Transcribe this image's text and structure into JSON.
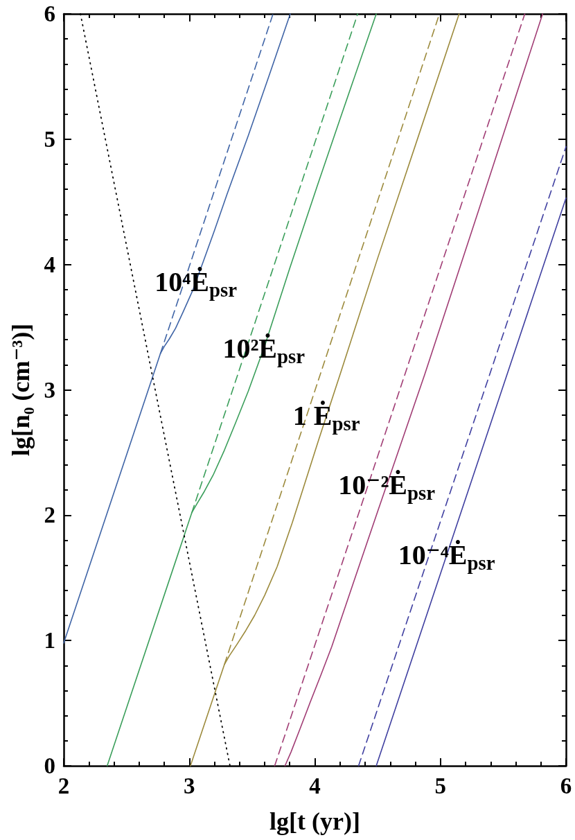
{
  "chart_data": {
    "type": "line",
    "xlabel": "lg[t (yr)]",
    "ylabel": "lg[n₀ (cm⁻³)]",
    "marker": "none",
    "xlim": [
      2,
      6
    ],
    "ylim": [
      0,
      6
    ],
    "xticks": [
      2,
      {
        "value": 2.2,
        "label": null
      },
      {
        "value": 2.4,
        "label": null
      },
      {
        "value": 2.6,
        "label": null
      },
      {
        "value": 2.8,
        "label": null
      },
      3,
      {
        "value": 3.2,
        "label": null
      },
      {
        "value": 3.4,
        "label": null
      },
      {
        "value": 3.6,
        "label": null
      },
      {
        "value": 3.8,
        "label": null
      },
      4,
      {
        "value": 4.2,
        "label": null
      },
      {
        "value": 4.4,
        "label": null
      },
      {
        "value": 4.6,
        "label": null
      },
      {
        "value": 4.8,
        "label": null
      },
      5,
      {
        "value": 5.2,
        "label": null
      },
      {
        "value": 5.4,
        "label": null
      },
      {
        "value": 5.6,
        "label": null
      },
      {
        "value": 5.8,
        "label": null
      },
      6
    ],
    "yticks": [
      0,
      {
        "value": 0.2,
        "label": null
      },
      {
        "value": 0.4,
        "label": null
      },
      {
        "value": 0.6,
        "label": null
      },
      {
        "value": 0.8,
        "label": null
      },
      1,
      {
        "value": 1.2,
        "label": null
      },
      {
        "value": 1.4,
        "label": null
      },
      {
        "value": 1.6,
        "label": null
      },
      {
        "value": 1.8,
        "label": null
      },
      2,
      {
        "value": 2.2,
        "label": null
      },
      {
        "value": 2.4,
        "label": null
      },
      {
        "value": 2.6,
        "label": null
      },
      {
        "value": 2.8,
        "label": null
      },
      3,
      {
        "value": 3.2,
        "label": null
      },
      {
        "value": 3.4,
        "label": null
      },
      {
        "value": 3.6,
        "label": null
      },
      {
        "value": 3.8,
        "label": null
      },
      4,
      {
        "value": 4.2,
        "label": null
      },
      {
        "value": 4.4,
        "label": null
      },
      {
        "value": 4.6,
        "label": null
      },
      {
        "value": 4.8,
        "label": null
      },
      5,
      {
        "value": 5.2,
        "label": null
      },
      {
        "value": 5.4,
        "label": null
      },
      {
        "value": 5.6,
        "label": null
      },
      {
        "value": 5.8,
        "label": null
      },
      6
    ],
    "series": [
      {
        "color": "#3f64a6",
        "line_style": "solid",
        "x": [
          2,
          2.77,
          2.8,
          2.84,
          2.89,
          2.95,
          3.03,
          3.11,
          3.2,
          3.3,
          3.47,
          3.64,
          3.804
        ],
        "values": [
          0.98,
          3.29,
          3.345,
          3.405,
          3.49,
          3.62,
          3.8,
          4.02,
          4.27,
          4.56,
          5.03,
          5.52,
          6
        ]
      },
      {
        "color": "#3f64a6",
        "line_style": "dashed",
        "x": [
          2.77,
          3.667
        ],
        "values": [
          3.29,
          6
        ]
      },
      {
        "color": "#3a9e5a",
        "line_style": "solid",
        "x": [
          2.346,
          3.02,
          3.06,
          3.12,
          3.19,
          3.28,
          3.37,
          3.47,
          3.6,
          3.8,
          4.02,
          4.2,
          4.489
        ],
        "values": [
          0,
          2.02,
          2.09,
          2.19,
          2.32,
          2.52,
          2.74,
          2.99,
          3.35,
          3.97,
          4.63,
          5.16,
          6
        ]
      },
      {
        "color": "#3a9e5a",
        "line_style": "dashed",
        "x": [
          3.02,
          4.341
        ],
        "values": [
          2.02,
          6
        ]
      },
      {
        "color": "#9c8a3c",
        "line_style": "solid",
        "x": [
          3.009,
          3.28,
          3.32,
          3.38,
          3.45,
          3.52,
          3.6,
          3.7,
          3.82,
          4.03,
          4.2,
          4.5,
          4.8,
          5.149
        ],
        "values": [
          0,
          0.81,
          0.88,
          0.97,
          1.08,
          1.2,
          1.36,
          1.59,
          1.94,
          2.6,
          3.12,
          4.05,
          4.95,
          6
        ]
      },
      {
        "color": "#9c8a3c",
        "line_style": "dashed",
        "x": [
          3.28,
          4.992
        ],
        "values": [
          0.81,
          6
        ]
      },
      {
        "color": "#a03c74",
        "line_style": "solid",
        "x": [
          3.762,
          3.81,
          3.88,
          3.96,
          4.05,
          4.134,
          4.3,
          4.5,
          4.874,
          5.3,
          5.814
        ],
        "values": [
          0,
          0.11,
          0.29,
          0.5,
          0.73,
          0.95,
          1.44,
          2.03,
          3.12,
          4.42,
          6
        ]
      },
      {
        "color": "#a03c74",
        "line_style": "dashed",
        "x": [
          3.68,
          5.672
        ],
        "values": [
          0,
          6
        ]
      },
      {
        "color": "#3f3fa0",
        "line_style": "solid",
        "x": [
          4.489,
          6
        ],
        "values": [
          0,
          4.53
        ]
      },
      {
        "color": "#3f3fa0",
        "line_style": "dashed",
        "x": [
          4.348,
          6
        ],
        "values": [
          0,
          4.94
        ]
      },
      {
        "color": "#000000",
        "line_style": "dotted",
        "x": [
          2.133,
          3.324
        ],
        "values": [
          6,
          0
        ]
      }
    ],
    "annotations": [
      {
        "text": "10⁴Ė$_{psr}$",
        "x": 3.052,
        "y": 3.86
      },
      {
        "text": "10²Ė$_{psr}$",
        "x": 3.593,
        "y": 3.33
      },
      {
        "text": "1 Ė$_{psr}$",
        "x": 4.092,
        "y": 2.79
      },
      {
        "text": "10⁻²Ė$_{psr}$",
        "x": 4.572,
        "y": 2.24
      },
      {
        "text": "10⁻⁴Ė$_{psr}$",
        "x": 5.049,
        "y": 1.68
      }
    ]
  }
}
